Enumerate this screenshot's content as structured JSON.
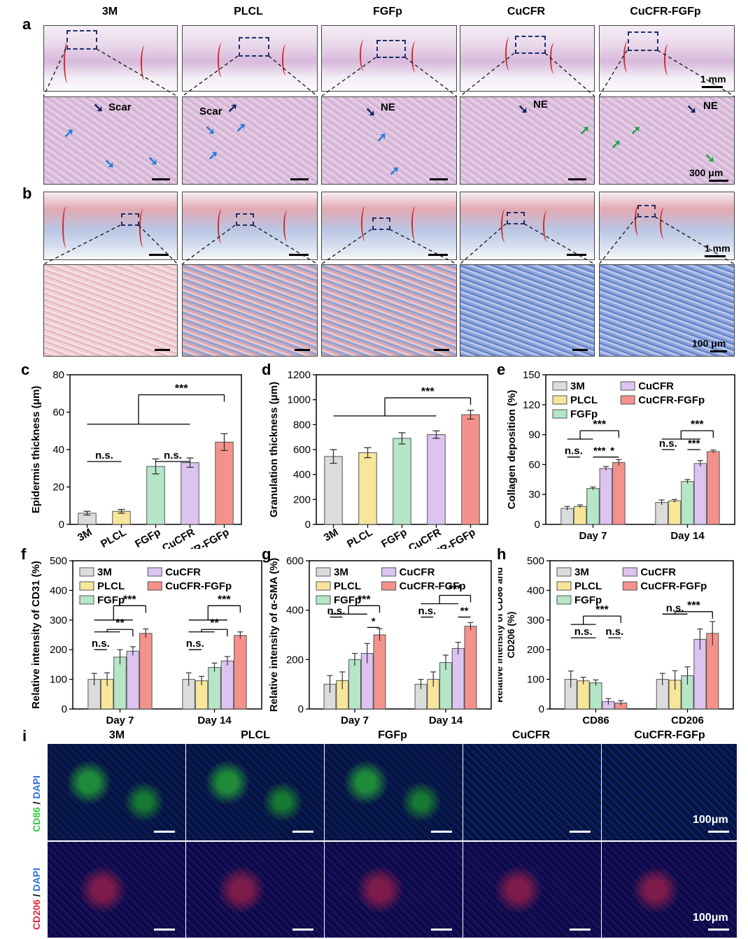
{
  "panel_labels": {
    "a": "a",
    "b": "b",
    "c": "c",
    "d": "d",
    "e": "e",
    "f": "f",
    "g": "g",
    "h": "h",
    "i": "i"
  },
  "groups": [
    "3M",
    "PLCL",
    "FGFp",
    "CuCFR",
    "CuCFR-FGFp"
  ],
  "histology": {
    "scale_top_a": "1 mm",
    "scale_bottom_a": "300 μm",
    "scale_top_b": "1 mm",
    "scale_bottom_b": "100 μm",
    "annotations": {
      "scar1": "Scar",
      "scar2": "Scar",
      "ne1": "NE",
      "ne2": "NE",
      "ne3": "NE"
    }
  },
  "immunofluorescence": {
    "row1_stain_a": "CD86",
    "row1_stain_b": "DAPI",
    "row2_stain_a": "CD206",
    "row2_stain_b": "DAPI",
    "slash": " / ",
    "scale": "100μm",
    "colors": {
      "cd86": "#2ecc40",
      "dapi": "#2f6fd8",
      "cd206": "#e0263a"
    }
  },
  "series_colors": {
    "3M": "#dcdcdc",
    "PLCL": "#f7e59a",
    "FGFp": "#b6e6c8",
    "CuCFR": "#dcc3f0",
    "CuCFR-FGFp": "#f3928b"
  },
  "chart_data": [
    {
      "id": "c",
      "type": "bar",
      "categories": [
        "3M",
        "PLCL",
        "FGFp",
        "CuCFR",
        "CuCFR-FGFp"
      ],
      "values": [
        6,
        7,
        31,
        33,
        44
      ],
      "errors": [
        1,
        1,
        4,
        2.5,
        4.5
      ],
      "ylabel": "Epidermis thickness (μm)",
      "ylim": [
        0,
        80
      ],
      "yticks": [
        0,
        20,
        40,
        60,
        80
      ],
      "sig": [
        "n.s.",
        "n.s.",
        "***"
      ]
    },
    {
      "id": "d",
      "type": "bar",
      "categories": [
        "3M",
        "PLCL",
        "FGFp",
        "CuCFR",
        "CuCFR-FGFp"
      ],
      "values": [
        545,
        575,
        690,
        720,
        880
      ],
      "errors": [
        55,
        40,
        45,
        30,
        35
      ],
      "ylabel": "Granulation thickness (μm)",
      "ylim": [
        0,
        1200
      ],
      "yticks": [
        0,
        200,
        400,
        600,
        800,
        1000,
        1200
      ],
      "sig": [
        "***"
      ]
    },
    {
      "id": "e",
      "type": "bar",
      "categories": [
        "Day 7",
        "Day 14"
      ],
      "series": [
        {
          "name": "3M",
          "values": [
            16,
            22
          ],
          "errors": [
            2,
            2.5
          ]
        },
        {
          "name": "PLCL",
          "values": [
            18,
            23.5
          ],
          "errors": [
            1.5,
            1.5
          ]
        },
        {
          "name": "FGFp",
          "values": [
            36,
            43
          ],
          "errors": [
            1.5,
            2
          ]
        },
        {
          "name": "CuCFR",
          "values": [
            56,
            61
          ],
          "errors": [
            2,
            3
          ]
        },
        {
          "name": "CuCFR-FGFp",
          "values": [
            62,
            73
          ],
          "errors": [
            3,
            1.5
          ]
        }
      ],
      "ylabel": "Collagen deposition (%)",
      "ylim": [
        0,
        150
      ],
      "yticks": [
        0,
        30,
        60,
        90,
        120,
        150
      ],
      "sig": [
        "n.s.",
        "***",
        "*",
        "***",
        "n.s.",
        "***",
        "***"
      ]
    },
    {
      "id": "f",
      "type": "bar",
      "categories": [
        "Day 7",
        "Day 14"
      ],
      "series": [
        {
          "name": "3M",
          "values": [
            100,
            100
          ],
          "errors": [
            20,
            22
          ]
        },
        {
          "name": "PLCL",
          "values": [
            100,
            95
          ],
          "errors": [
            22,
            15
          ]
        },
        {
          "name": "FGFp",
          "values": [
            175,
            140
          ],
          "errors": [
            25,
            15
          ]
        },
        {
          "name": "CuCFR",
          "values": [
            195,
            162
          ],
          "errors": [
            15,
            15
          ]
        },
        {
          "name": "CuCFR-FGFp",
          "values": [
            255,
            248
          ],
          "errors": [
            15,
            12
          ]
        }
      ],
      "ylabel": "Relative intensity of CD31 (%)",
      "ylim": [
        0,
        500
      ],
      "yticks": [
        0,
        100,
        200,
        300,
        400,
        500
      ],
      "sig": [
        "n.s.",
        "**",
        "***",
        "n.s.",
        "**",
        "***"
      ]
    },
    {
      "id": "g",
      "type": "bar",
      "categories": [
        "Day 7",
        "Day 14"
      ],
      "series": [
        {
          "name": "3M",
          "values": [
            100,
            100
          ],
          "errors": [
            35,
            20
          ]
        },
        {
          "name": "PLCL",
          "values": [
            115,
            120
          ],
          "errors": [
            35,
            30
          ]
        },
        {
          "name": "FGFp",
          "values": [
            200,
            188
          ],
          "errors": [
            25,
            30
          ]
        },
        {
          "name": "CuCFR",
          "values": [
            225,
            245
          ],
          "errors": [
            40,
            25
          ]
        },
        {
          "name": "CuCFR-FGFp",
          "values": [
            300,
            335
          ],
          "errors": [
            25,
            15
          ]
        }
      ],
      "ylabel": "Relative intensity of α-SMA (%)",
      "ylim": [
        0,
        600
      ],
      "yticks": [
        0,
        200,
        400,
        600
      ],
      "sig": [
        "n.s.",
        "***",
        "*",
        "n.s.",
        "***",
        "**"
      ]
    },
    {
      "id": "h",
      "type": "bar",
      "categories": [
        "CD86",
        "CD206"
      ],
      "series": [
        {
          "name": "3M",
          "values": [
            100,
            100
          ],
          "errors": [
            28,
            20
          ]
        },
        {
          "name": "PLCL",
          "values": [
            95,
            97
          ],
          "errors": [
            12,
            32
          ]
        },
        {
          "name": "FGFp",
          "values": [
            88,
            112
          ],
          "errors": [
            10,
            30
          ]
        },
        {
          "name": "CuCFR",
          "values": [
            25,
            235
          ],
          "errors": [
            10,
            35
          ]
        },
        {
          "name": "CuCFR-FGFp",
          "values": [
            20,
            255
          ],
          "errors": [
            8,
            40
          ]
        }
      ],
      "ylabel": "Relative intensity of CD86 and CD206 (%)",
      "ylim": [
        0,
        500
      ],
      "yticks": [
        0,
        100,
        200,
        300,
        400,
        500
      ],
      "sig": [
        "***",
        "n.s.",
        "n.s.",
        "***",
        "n.s."
      ]
    }
  ]
}
